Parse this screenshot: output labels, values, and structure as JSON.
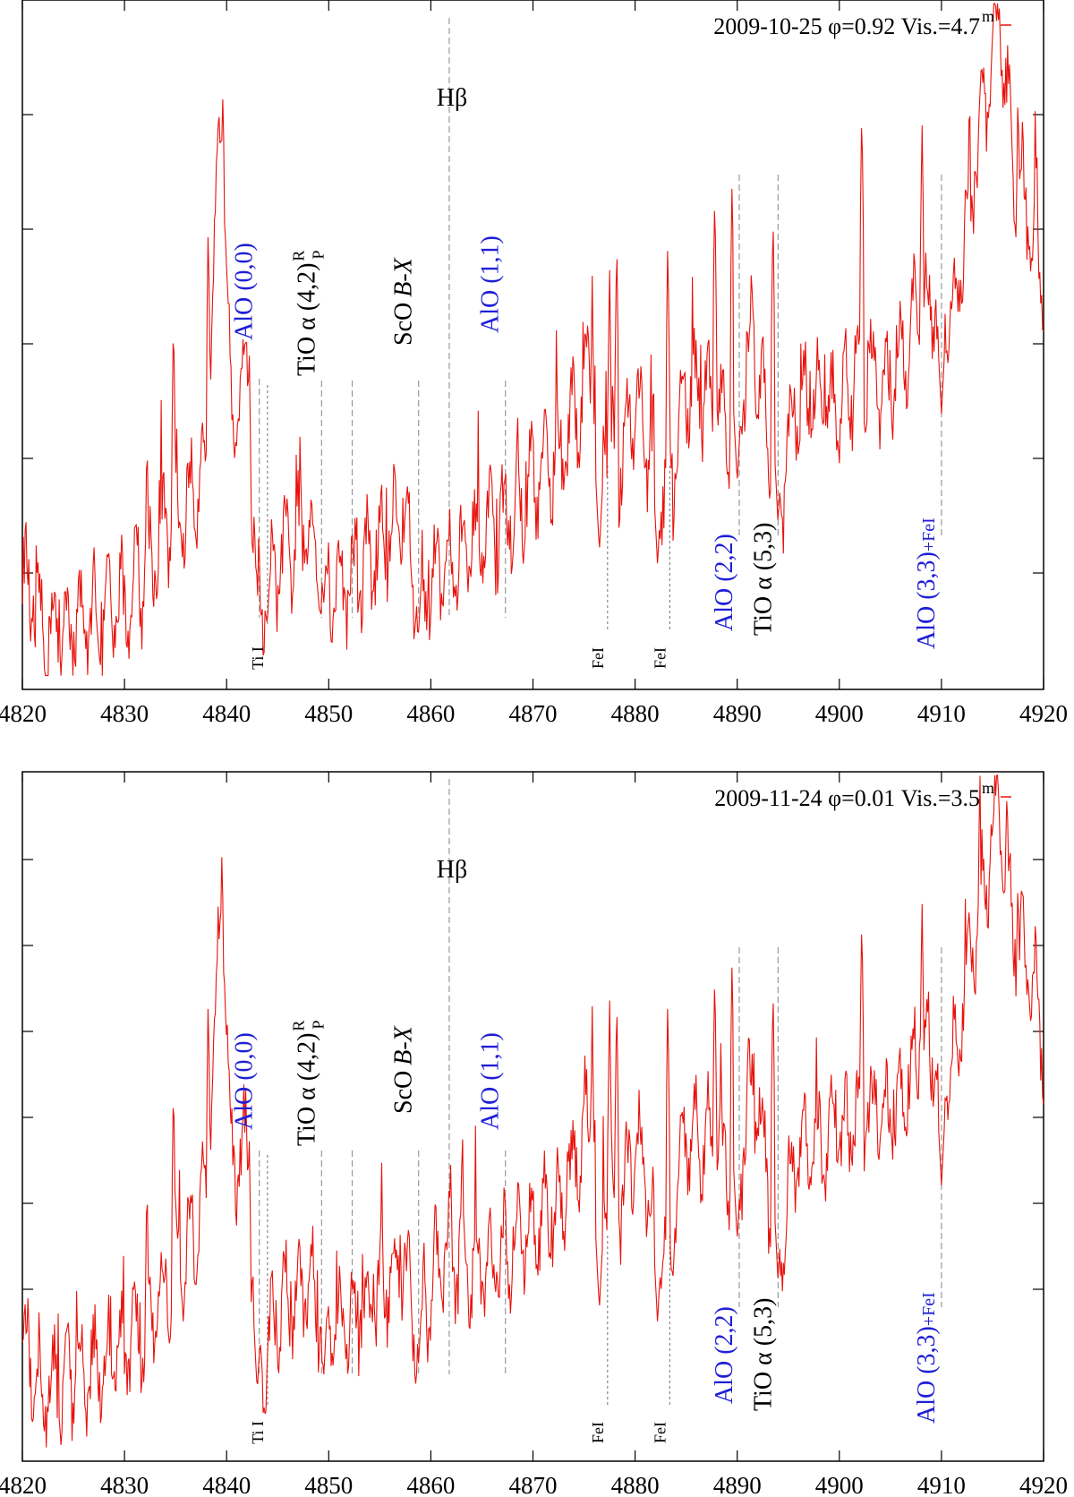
{
  "chart_data": [
    {
      "type": "line",
      "legend": {
        "text": "2009-10-25 φ=0.92 Vis.=4.7",
        "superscript": "m",
        "position": "top-right"
      },
      "xlim": [
        4820,
        4920
      ],
      "x_ticks": [
        "4820",
        "4830",
        "4840",
        "4850",
        "4860",
        "4870",
        "4880",
        "4890",
        "4900",
        "4910",
        "4920"
      ],
      "series": [
        {
          "color": "#e8120c",
          "x": [
            4820,
            4822,
            4825,
            4828,
            4830,
            4832,
            4834,
            4836,
            4838,
            4839.6,
            4840.5,
            4842,
            4843,
            4844,
            4846,
            4848,
            4850,
            4852,
            4855,
            4857,
            4858.8,
            4861,
            4864,
            4867,
            4870,
            4873,
            4875.8,
            4878.2,
            4880,
            4883.2,
            4885,
            4888,
            4890,
            4891.5,
            4894,
            4896,
            4899,
            4902,
            4905,
            4908,
            4911,
            4913,
            4915.6,
            4917,
            4919,
            4920
          ],
          "y": [
            0.16,
            0.08,
            0.1,
            0.11,
            0.12,
            0.17,
            0.24,
            0.26,
            0.34,
            0.88,
            0.38,
            0.44,
            0.12,
            0.14,
            0.2,
            0.24,
            0.14,
            0.16,
            0.2,
            0.27,
            0.12,
            0.18,
            0.2,
            0.24,
            0.3,
            0.34,
            0.48,
            0.32,
            0.42,
            0.26,
            0.44,
            0.42,
            0.36,
            0.52,
            0.26,
            0.42,
            0.4,
            0.46,
            0.44,
            0.56,
            0.54,
            0.72,
            0.98,
            0.76,
            0.66,
            0.58
          ],
          "spikes": [
            [
              4832.2,
              0.38
            ],
            [
              4834.8,
              0.55
            ],
            [
              4838.2,
              0.68
            ],
            [
              4839.6,
              0.88
            ],
            [
              4842.2,
              0.52
            ],
            [
              4857.5,
              0.3
            ],
            [
              4875.8,
              0.6
            ],
            [
              4877.5,
              0.62
            ],
            [
              4878.2,
              0.66
            ],
            [
              4883.2,
              0.66
            ],
            [
              4887.8,
              0.73
            ],
            [
              4889.5,
              0.75
            ],
            [
              4893.5,
              0.7
            ],
            [
              4902.2,
              0.85
            ],
            [
              4908.1,
              0.83
            ],
            [
              4915.6,
              0.98
            ],
            [
              4917.5,
              0.88
            ],
            [
              4919.2,
              0.84
            ]
          ],
          "dips": [
            [
              4844,
              0.1
            ],
            [
              4849.5,
              0.12
            ],
            [
              4858.8,
              0.08
            ],
            [
              4876.5,
              0.2
            ],
            [
              4882.2,
              0.18
            ],
            [
              4890,
              0.3
            ],
            [
              4894,
              0.24
            ],
            [
              4910,
              0.4
            ]
          ]
        }
      ],
      "line_markers": [
        {
          "x": 4844.0,
          "label": "Ti I",
          "color": "#000000",
          "style": "short"
        },
        {
          "x": 4877.3,
          "label": "FeI",
          "color": "#000000",
          "style": "short"
        },
        {
          "x": 4883.4,
          "label": "FeI",
          "color": "#000000",
          "style": "short"
        },
        {
          "x": 4861.8,
          "label": "Hβ",
          "color": "#000000",
          "style": "long"
        }
      ],
      "band_labels": [
        {
          "text": "AlO (0,0)",
          "color": "#1f1fd6"
        },
        {
          "text": "TiO α (4,2)",
          "sup": "R",
          "sub": "P",
          "color": "#000000"
        },
        {
          "text": "ScO",
          "italic": "B-X",
          "color": "#000000"
        },
        {
          "text": "AlO (1,1)",
          "color": "#1f1fd6"
        },
        {
          "text": "AlO (2,2)",
          "color": "#1f1fd6"
        },
        {
          "text": "TiO α (5,3)",
          "color": "#000000"
        },
        {
          "text": "AlO (3,3)",
          "suffix": "+FeI",
          "color": "#1f1fd6"
        }
      ]
    },
    {
      "type": "line",
      "legend": {
        "text": "2009-11-24 φ=0.01 Vis.=3.5",
        "superscript": "m",
        "position": "top-right"
      },
      "xlim": [
        4820,
        4920
      ],
      "x_ticks": [
        "4820",
        "4830",
        "4840",
        "4850",
        "4860",
        "4870",
        "4880",
        "4890",
        "4900",
        "4910",
        "4920"
      ],
      "series": [
        {
          "color": "#e8120c",
          "x": [
            4820,
            4822,
            4825,
            4828,
            4830,
            4832,
            4834,
            4836,
            4838,
            4839.6,
            4840.5,
            4842,
            4843,
            4844,
            4846,
            4848,
            4850,
            4852,
            4855,
            4857,
            4858.8,
            4861,
            4864,
            4867,
            4870,
            4873,
            4875.8,
            4878.2,
            4880,
            4883.2,
            4885,
            4888,
            4890,
            4891.5,
            4894,
            4896,
            4899,
            4902,
            4905,
            4908,
            4911,
            4913,
            4915.6,
            4917,
            4919,
            4920
          ],
          "y": [
            0.18,
            0.1,
            0.12,
            0.14,
            0.16,
            0.2,
            0.26,
            0.3,
            0.38,
            0.84,
            0.42,
            0.46,
            0.12,
            0.16,
            0.24,
            0.26,
            0.18,
            0.2,
            0.24,
            0.3,
            0.18,
            0.3,
            0.28,
            0.3,
            0.34,
            0.38,
            0.5,
            0.36,
            0.46,
            0.3,
            0.48,
            0.46,
            0.4,
            0.56,
            0.3,
            0.46,
            0.46,
            0.5,
            0.5,
            0.6,
            0.58,
            0.74,
            0.96,
            0.78,
            0.68,
            0.6
          ],
          "spikes": [
            [
              4832.2,
              0.42
            ],
            [
              4834.8,
              0.56
            ],
            [
              4838.2,
              0.68
            ],
            [
              4839.6,
              0.84
            ],
            [
              4842.2,
              0.5
            ],
            [
              4857.5,
              0.34
            ],
            [
              4861.8,
              0.44
            ],
            [
              4875.8,
              0.66
            ],
            [
              4877.5,
              0.68
            ],
            [
              4878.2,
              0.68
            ],
            [
              4883.2,
              0.68
            ],
            [
              4887.8,
              0.72
            ],
            [
              4889.5,
              0.74
            ],
            [
              4893.5,
              0.7
            ],
            [
              4902.2,
              0.8
            ],
            [
              4908.1,
              0.82
            ],
            [
              4915.6,
              0.96
            ],
            [
              4917.5,
              0.86
            ],
            [
              4919.2,
              0.8
            ]
          ],
          "dips": [
            [
              4843,
              0.1
            ],
            [
              4849.5,
              0.12
            ],
            [
              4858.8,
              0.14
            ],
            [
              4876.5,
              0.22
            ],
            [
              4882.2,
              0.2
            ],
            [
              4890,
              0.32
            ],
            [
              4894,
              0.26
            ],
            [
              4910,
              0.4
            ]
          ]
        }
      ],
      "line_markers": [
        {
          "x": 4844.0,
          "label": "Ti I",
          "color": "#000000",
          "style": "short"
        },
        {
          "x": 4877.3,
          "label": "FeI",
          "color": "#000000",
          "style": "short"
        },
        {
          "x": 4883.4,
          "label": "FeI",
          "color": "#000000",
          "style": "short"
        },
        {
          "x": 4861.8,
          "label": "Hβ",
          "color": "#000000",
          "style": "long"
        }
      ],
      "band_labels": [
        {
          "text": "AlO (0,0)",
          "color": "#1f1fd6"
        },
        {
          "text": "TiO α (4,2)",
          "sup": "R",
          "sub": "P",
          "color": "#000000"
        },
        {
          "text": "ScO",
          "italic": "B-X",
          "color": "#000000"
        },
        {
          "text": "AlO (1,1)",
          "color": "#1f1fd6"
        },
        {
          "text": "AlO (2,2)",
          "color": "#1f1fd6"
        },
        {
          "text": "TiO α (5,3)",
          "color": "#000000"
        },
        {
          "text": "AlO (3,3)",
          "suffix": "+FeI",
          "color": "#1f1fd6"
        }
      ]
    }
  ]
}
